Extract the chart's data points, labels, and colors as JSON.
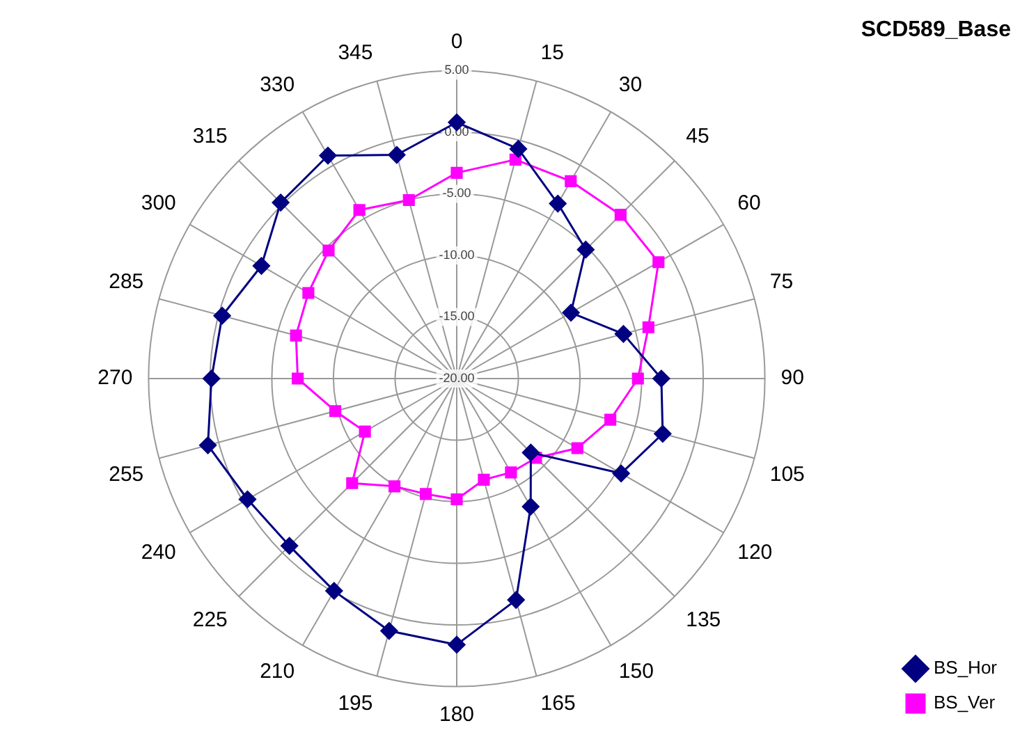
{
  "chart_data": {
    "type": "radar",
    "title": "SCD589_Base",
    "categories": [
      "0",
      "15",
      "30",
      "45",
      "60",
      "75",
      "90",
      "105",
      "120",
      "135",
      "150",
      "165",
      "180",
      "195",
      "210",
      "225",
      "240",
      "255",
      "270",
      "285",
      "300",
      "315",
      "330",
      "345"
    ],
    "series": [
      {
        "name": "BS_Hor",
        "color": "#000080",
        "marker": "diamond",
        "values": [
          0.8,
          -0.7,
          -3.6,
          -5.2,
          -9.3,
          -6.0,
          -3.4,
          -2.7,
          -4.6,
          -11.5,
          -8.0,
          -1.4,
          1.6,
          1.2,
          -0.1,
          -0.8,
          -0.4,
          0.9,
          -0.1,
          -0.3,
          -1.7,
          0.2,
          0.9,
          -1.2
        ]
      },
      {
        "name": "BS_Ver",
        "color": "#ff00ff",
        "marker": "square",
        "values": [
          -3.3,
          -1.6,
          -1.5,
          -1.2,
          -1.1,
          -3.9,
          -5.3,
          -7.1,
          -8.7,
          -10.9,
          -11.2,
          -11.5,
          -10.2,
          -10.3,
          -9.9,
          -8.0,
          -11.4,
          -9.8,
          -7.1,
          -6.5,
          -6.1,
          -5.3,
          -4.2,
          -5.0
        ]
      }
    ],
    "ylim": [
      -20,
      5
    ],
    "yticks": [
      {
        "value": -20,
        "label": "-20.00"
      },
      {
        "value": -15,
        "label": "-15.00"
      },
      {
        "value": -10,
        "label": "-10.00"
      },
      {
        "value": -5,
        "label": "-5.00"
      },
      {
        "value": 0,
        "label": "0.00"
      },
      {
        "value": 5,
        "label": "5.00"
      }
    ],
    "grid": true,
    "legend": "bottom right",
    "line_style": "solid"
  }
}
